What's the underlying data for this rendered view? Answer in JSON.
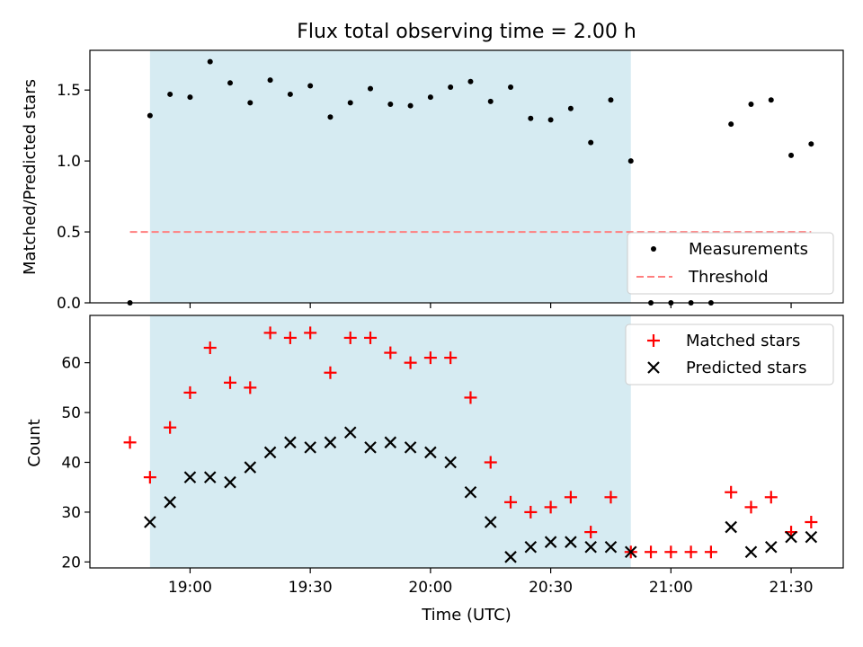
{
  "title": "Flux total observing time = 2.00 h",
  "colors": {
    "span": "#add8e6",
    "measurement": "#000000",
    "threshold": "#ff7f7f",
    "matched": "#ff0000",
    "predicted": "#000000"
  },
  "chart_data": [
    {
      "type": "scatter",
      "ylabel": "Matched/Predicted stars",
      "ylim": [
        0.0,
        1.78
      ],
      "yticks": [
        0.0,
        0.5,
        1.0,
        1.5
      ],
      "ytick_labels": [
        "0.0",
        "0.5",
        "1.0",
        "1.5"
      ],
      "xlim": [
        "18:35",
        "21:43"
      ],
      "observing_window": [
        "18:50",
        "20:50"
      ],
      "legend": {
        "placement": "lower-right",
        "entries": [
          "Measurements",
          "Threshold"
        ]
      },
      "threshold": {
        "name": "Threshold",
        "value": 0.5,
        "x_range": [
          "18:45",
          "21:35"
        ]
      },
      "series": [
        {
          "name": "Measurements",
          "x": [
            "18:45",
            "18:50",
            "18:55",
            "19:00",
            "19:05",
            "19:10",
            "19:15",
            "19:20",
            "19:25",
            "19:30",
            "19:35",
            "19:40",
            "19:45",
            "19:50",
            "19:55",
            "20:00",
            "20:05",
            "20:10",
            "20:15",
            "20:20",
            "20:25",
            "20:30",
            "20:35",
            "20:40",
            "20:45",
            "20:50",
            "20:55",
            "21:00",
            "21:05",
            "21:10",
            "21:15",
            "21:20",
            "21:25",
            "21:30",
            "21:35"
          ],
          "values": [
            0.0,
            1.32,
            1.47,
            1.45,
            1.7,
            1.55,
            1.41,
            1.57,
            1.47,
            1.53,
            1.31,
            1.41,
            1.51,
            1.4,
            1.39,
            1.45,
            1.52,
            1.56,
            1.42,
            1.52,
            1.3,
            1.29,
            1.37,
            1.13,
            1.43,
            1.0,
            0.0,
            0.0,
            0.0,
            0.0,
            1.26,
            1.4,
            1.43,
            1.04,
            1.12
          ]
        }
      ]
    },
    {
      "type": "scatter",
      "xlabel": "Time (UTC)",
      "ylabel": "Count",
      "ylim": [
        18.8,
        69.5
      ],
      "yticks": [
        20,
        30,
        40,
        50,
        60
      ],
      "ytick_labels": [
        "20",
        "30",
        "40",
        "50",
        "60"
      ],
      "xlim": [
        "18:35",
        "21:43"
      ],
      "xticks": [
        "19:00",
        "19:30",
        "20:00",
        "20:30",
        "21:00",
        "21:30"
      ],
      "observing_window": [
        "18:50",
        "20:50"
      ],
      "legend": {
        "placement": "upper-right",
        "entries": [
          "Matched stars",
          "Predicted stars"
        ]
      },
      "series": [
        {
          "name": "Matched stars",
          "marker": "plus",
          "x": [
            "18:45",
            "18:50",
            "18:55",
            "19:00",
            "19:05",
            "19:10",
            "19:15",
            "19:20",
            "19:25",
            "19:30",
            "19:35",
            "19:40",
            "19:45",
            "19:50",
            "19:55",
            "20:00",
            "20:05",
            "20:10",
            "20:15",
            "20:20",
            "20:25",
            "20:30",
            "20:35",
            "20:40",
            "20:45",
            "20:50",
            "20:55",
            "21:00",
            "21:05",
            "21:10",
            "21:15",
            "21:20",
            "21:25",
            "21:30",
            "21:35"
          ],
          "values": [
            44,
            37,
            47,
            54,
            63,
            56,
            55,
            66,
            65,
            66,
            58,
            65,
            65,
            62,
            60,
            61,
            61,
            53,
            40,
            32,
            30,
            31,
            33,
            26,
            33,
            22,
            22,
            22,
            22,
            22,
            34,
            31,
            33,
            26,
            28
          ]
        },
        {
          "name": "Predicted stars",
          "marker": "x",
          "x": [
            "18:50",
            "18:55",
            "19:00",
            "19:05",
            "19:10",
            "19:15",
            "19:20",
            "19:25",
            "19:30",
            "19:35",
            "19:40",
            "19:45",
            "19:50",
            "19:55",
            "20:00",
            "20:05",
            "20:10",
            "20:15",
            "20:20",
            "20:25",
            "20:30",
            "20:35",
            "20:40",
            "20:45",
            "20:50",
            "21:15",
            "21:20",
            "21:25",
            "21:30",
            "21:35"
          ],
          "values": [
            28,
            32,
            37,
            37,
            36,
            39,
            42,
            44,
            43,
            44,
            46,
            43,
            44,
            43,
            42,
            40,
            34,
            28,
            21,
            23,
            24,
            24,
            23,
            23,
            22,
            27,
            22,
            23,
            25,
            25
          ]
        }
      ]
    }
  ]
}
